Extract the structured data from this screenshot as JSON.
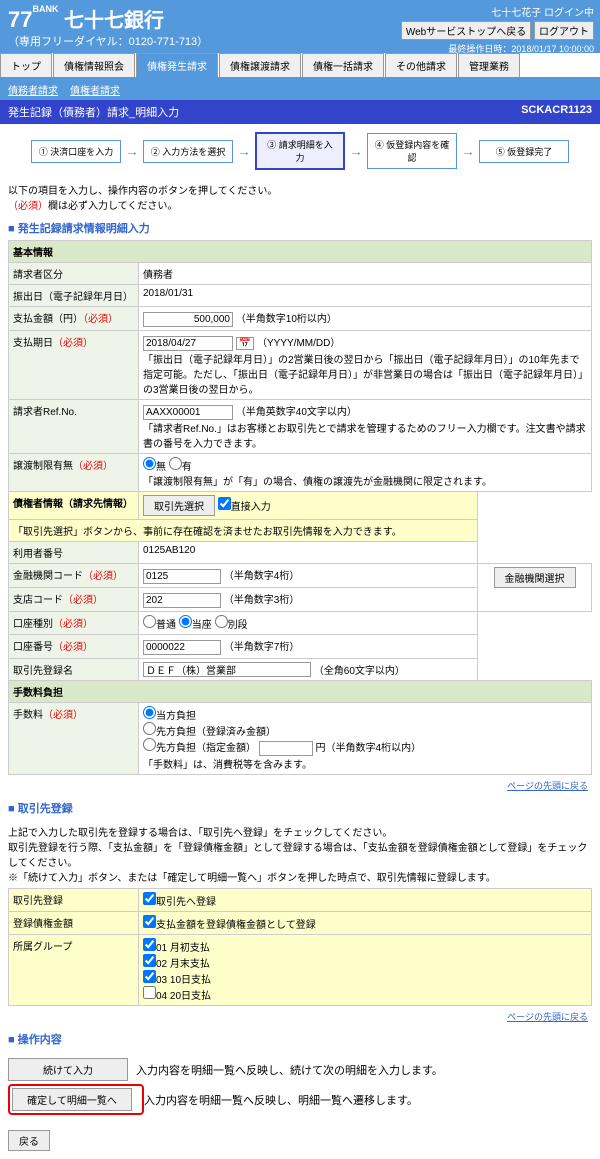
{
  "header": {
    "bank_num": "77",
    "bank_sub": "BANK",
    "bank_name": "七十七銀行",
    "dial": "（専用フリーダイヤル：0120-771-713）",
    "user": "七十七花子 ログイン中",
    "btn_back": "Webサービストップへ戻る",
    "btn_logout": "ログアウト",
    "timestamp": "最終操作日時：2018/01/17 10:00:00"
  },
  "tabs": {
    "items": [
      "トップ",
      "債権情報照会",
      "債権発生請求",
      "債権譲渡請求",
      "債権一括請求",
      "その他請求",
      "管理業務"
    ],
    "active": 2
  },
  "subnav": {
    "items": [
      "債務者請求",
      "債権者請求"
    ]
  },
  "bluebar": {
    "title": "発生記録（債務者）請求_明細入力",
    "screenid": "SCKACR1123"
  },
  "steps": {
    "items": [
      "① 決済口座を入力",
      "② 入力方法を選択",
      "③ 請求明細を入力",
      "④ 仮登録内容を確認",
      "⑤ 仮登録完了"
    ],
    "active": 2
  },
  "note": {
    "line1": "以下の項目を入力し、操作内容のボタンを押してください。",
    "line2_req": "（必須）",
    "line2": "欄は必ず入力してください。"
  },
  "section1": {
    "title": "発生記録請求情報明細入力"
  },
  "basic": {
    "banner": "基本情報",
    "rows": [
      {
        "label": "請求者区分",
        "value": "債務者"
      },
      {
        "label": "振出日（電子記録年月日）",
        "value": "2018/01/31"
      },
      {
        "label": "支払金額（円）",
        "req": true,
        "input": "500,000",
        "hint": "（半角数字10桁以内）"
      },
      {
        "label": "支払期日",
        "req": true,
        "input": "2018/04/27",
        "hint": "（YYYY/MM/DD）",
        "note": "「振出日（電子記録年月日）」の2営業日後の翌日から「振出日（電子記録年月日）」の10年先まで指定可能。ただし、「振出日（電子記録年月日）」が非営業日の場合は「振出日（電子記録年月日）」の3営業日後の翌日から。"
      },
      {
        "label": "請求者Ref.No.",
        "input": "AAXX00001",
        "hint": "（半角英数字40文字以内）",
        "note": "「請求者Ref.No.」はお客様とお取引先とで請求を管理するためのフリー入力欄です。注文書や請求書の番号を入力できます。"
      },
      {
        "label": "譲渡制限有無",
        "req": true,
        "radio": [
          "無",
          "有"
        ],
        "note": "「譲渡制限有無」が「有」の場合、債権の譲渡先が金融機関に限定されます。"
      }
    ]
  },
  "creditor": {
    "banner": "債権者情報（請求先情報）",
    "btn": "取引先選択",
    "chk": "直接入力",
    "note": "「取引先選択」ボタンから、事前に存在確認を済ませたお取引先情報を入力できます。",
    "rows": [
      {
        "label": "利用者番号",
        "value": "0125AB120"
      },
      {
        "label": "金融機関コード",
        "req": true,
        "input": "0125",
        "hint": "（半角数字4桁）",
        "sidebtn": "金融機関選択"
      },
      {
        "label": "支店コード",
        "req": true,
        "input": "202",
        "hint": "（半角数字3桁）"
      },
      {
        "label": "口座種別",
        "req": true,
        "radio": [
          "普通",
          "当座",
          "別段"
        ],
        "checked": 1
      },
      {
        "label": "口座番号",
        "req": true,
        "input": "0000022",
        "hint": "（半角数字7桁）"
      },
      {
        "label": "取引先登録名",
        "input": "ＤＥＦ（株）営業部",
        "hint": "（全角60文字以内）"
      }
    ]
  },
  "fee": {
    "banner": "手数料負担",
    "label": "手数料",
    "req": true,
    "radio": [
      "当方負担",
      "先方負担（登録済み金額）",
      "先方負担（指定金額）"
    ],
    "checked": 0,
    "amt_hint": "円（半角数字4桁以内）",
    "note": "「手数料」は、消費税等を含みます。"
  },
  "pagetop": "ページの先頭に戻る",
  "section2": {
    "title": "取引先登録",
    "note1": "上記で入力した取引先を登録する場合は、「取引先へ登録」をチェックしてください。",
    "note2": "取引先登録を行う際、「支払金額」を「登録債権金額」として登録する場合は、「支払金額を登録債権金額として登録」をチェックしてください。",
    "note3": "※「続けて入力」ボタン、または「確定して明細一覧へ」ボタンを押した時点で、取引先情報に登録します。"
  },
  "reg": {
    "rows": [
      {
        "label": "取引先登録",
        "chk": "取引先へ登録"
      },
      {
        "label": "登録債権金額",
        "chk": "支払金額を登録債権金額として登録"
      },
      {
        "label": "所属グループ",
        "chks": [
          "01 月初支払",
          "02 月末支払",
          "03 10日支払",
          "04 20日支払"
        ],
        "checked": [
          0,
          1,
          2
        ]
      }
    ]
  },
  "section3": {
    "title": "操作内容"
  },
  "ops": {
    "rows": [
      {
        "btn": "続けて入力",
        "desc": "入力内容を明細一覧へ反映し、続けて次の明細を入力します。"
      },
      {
        "btn": "確定して明細一覧へ",
        "desc": "入力内容を明細一覧へ反映し、明細一覧へ遷移します。",
        "highlight": true
      }
    ],
    "back": "戻る"
  }
}
